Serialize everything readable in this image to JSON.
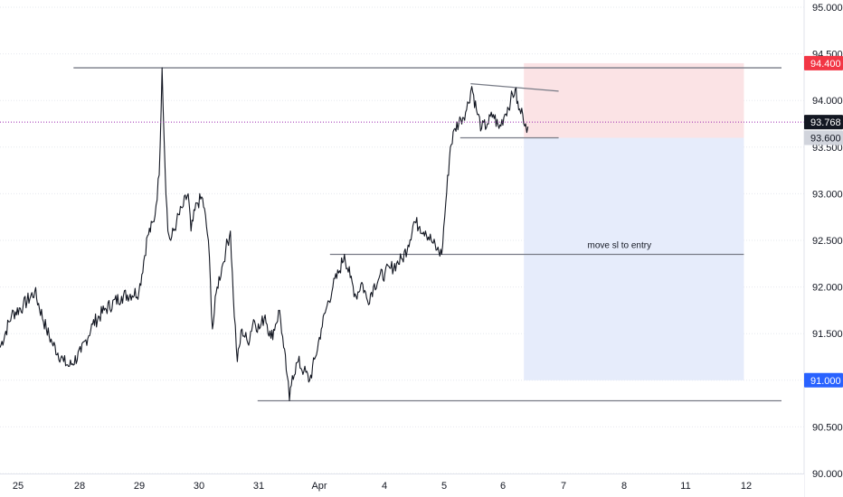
{
  "chart_data": {
    "type": "candlestick",
    "instrument_note": "",
    "x_axis": {
      "type": "date",
      "ticks": [
        "25",
        "28",
        "29",
        "30",
        "31",
        "Apr",
        "4",
        "5",
        "6",
        "7",
        "8",
        "11",
        "12"
      ]
    },
    "y_axis": {
      "side": "right",
      "range": [
        90.0,
        95.0
      ],
      "ticks": [
        "95.000",
        "94.500",
        "94.000",
        "93.500",
        "93.000",
        "92.500",
        "92.000",
        "91.500",
        "91.000",
        "90.500",
        "90.000"
      ],
      "grid": true
    },
    "price_series": {
      "anchors": [
        [
          0,
          91.35
        ],
        [
          2,
          91.7
        ],
        [
          4,
          91.8
        ],
        [
          6,
          91.95
        ],
        [
          8,
          91.55
        ],
        [
          9,
          91.4
        ],
        [
          11,
          91.2
        ],
        [
          12,
          91.15
        ],
        [
          14,
          91.3
        ],
        [
          16,
          91.6
        ],
        [
          18,
          91.75
        ],
        [
          21,
          91.9
        ],
        [
          24,
          91.95
        ],
        [
          25.5,
          92.55
        ],
        [
          26.6,
          92.7
        ],
        [
          27.5,
          93.2
        ],
        [
          28,
          94.35
        ],
        [
          28.5,
          93.3
        ],
        [
          29,
          92.6
        ],
        [
          29.5,
          92.5
        ],
        [
          30.5,
          92.7
        ],
        [
          31.5,
          92.85
        ],
        [
          32.5,
          93.0
        ],
        [
          33,
          92.6
        ],
        [
          34,
          92.9
        ],
        [
          35,
          92.95
        ],
        [
          36,
          92.5
        ],
        [
          36.7,
          91.55
        ],
        [
          37.5,
          92.0
        ],
        [
          38.5,
          92.25
        ],
        [
          39,
          92.4
        ],
        [
          39.8,
          92.6
        ],
        [
          40.3,
          91.9
        ],
        [
          41,
          91.2
        ],
        [
          41.8,
          91.55
        ],
        [
          42.8,
          91.4
        ],
        [
          43.8,
          91.65
        ],
        [
          44.8,
          91.55
        ],
        [
          45.8,
          91.7
        ],
        [
          46.8,
          91.45
        ],
        [
          47.6,
          91.6
        ],
        [
          48.3,
          91.75
        ],
        [
          49,
          91.35
        ],
        [
          49.6,
          91.05
        ],
        [
          50,
          90.78
        ],
        [
          50.5,
          91.05
        ],
        [
          51.5,
          91.2
        ],
        [
          52.5,
          91.1
        ],
        [
          53.5,
          91.0
        ],
        [
          54.5,
          91.25
        ],
        [
          55.5,
          91.55
        ],
        [
          56.5,
          91.8
        ],
        [
          57.5,
          92.0
        ],
        [
          58.5,
          92.15
        ],
        [
          59.5,
          92.35
        ],
        [
          60.5,
          92.1
        ],
        [
          61.5,
          91.9
        ],
        [
          62.5,
          92.05
        ],
        [
          63.5,
          91.85
        ],
        [
          64.5,
          92.0
        ],
        [
          65.5,
          92.1
        ],
        [
          66.5,
          92.15
        ],
        [
          67.5,
          92.2
        ],
        [
          68.5,
          92.25
        ],
        [
          69.5,
          92.3
        ],
        [
          70.5,
          92.45
        ],
        [
          71.5,
          92.7
        ],
        [
          72.5,
          92.65
        ],
        [
          73.5,
          92.6
        ],
        [
          74.5,
          92.5
        ],
        [
          75.5,
          92.4
        ],
        [
          76.3,
          92.35
        ],
        [
          77,
          92.9
        ],
        [
          77.8,
          93.5
        ],
        [
          78.6,
          93.7
        ],
        [
          79.6,
          93.8
        ],
        [
          80.6,
          93.9
        ],
        [
          81.5,
          94.15
        ],
        [
          82.3,
          93.9
        ],
        [
          83.2,
          93.7
        ],
        [
          84.2,
          93.75
        ],
        [
          85.2,
          93.85
        ],
        [
          86.2,
          93.7
        ],
        [
          87.2,
          93.85
        ],
        [
          88.2,
          94.0
        ],
        [
          89,
          94.12
        ],
        [
          89.6,
          93.9
        ],
        [
          90.3,
          93.85
        ],
        [
          90.8,
          93.75
        ],
        [
          91.2,
          93.72
        ]
      ],
      "last_price": 93.768
    },
    "drawings": {
      "horizontal_lines": [
        {
          "name": "resistance-line",
          "y": 94.35,
          "x_from": 12.7,
          "x_to": 135
        },
        {
          "name": "support-line",
          "y": 90.78,
          "x_from": 44.5,
          "x_to": 135
        },
        {
          "name": "entry-level-line",
          "y": 92.35,
          "x_from": 57,
          "x_to": 128.5
        }
      ],
      "flag_top": {
        "x_from": 81.3,
        "y_from": 94.18,
        "x_to": 96.5,
        "y_to": 94.1
      },
      "flag_bottom": {
        "x_from": 79.5,
        "y_from": 93.6,
        "x_to": 96.5,
        "y_to": 93.6
      },
      "position": {
        "x_from": 90.5,
        "x_to": 128.5,
        "stop": 94.4,
        "entry": 93.6,
        "target": 91.0
      },
      "annotation": {
        "text": "move sl to entry",
        "x": 107,
        "y": 92.42
      }
    },
    "price_tags": [
      {
        "label": "94.400",
        "value": 94.4,
        "bg": "#f23645",
        "fg": "#ffffff"
      },
      {
        "label": "93.768",
        "value": 93.768,
        "bg": "#131722",
        "fg": "#ffffff"
      },
      {
        "label": "93.600",
        "value": 93.6,
        "bg": "#d1d4dc",
        "fg": "#131722"
      },
      {
        "label": "91.000",
        "value": 91.0,
        "bg": "#2962ff",
        "fg": "#ffffff"
      }
    ],
    "colors": {
      "price": "#131722",
      "stop_zone": "#fbe3e5",
      "target_zone": "#e6ecfb",
      "last_price_line": "#9c27b0",
      "drawing": "#787b86",
      "grid": "#e6e8ee"
    }
  }
}
